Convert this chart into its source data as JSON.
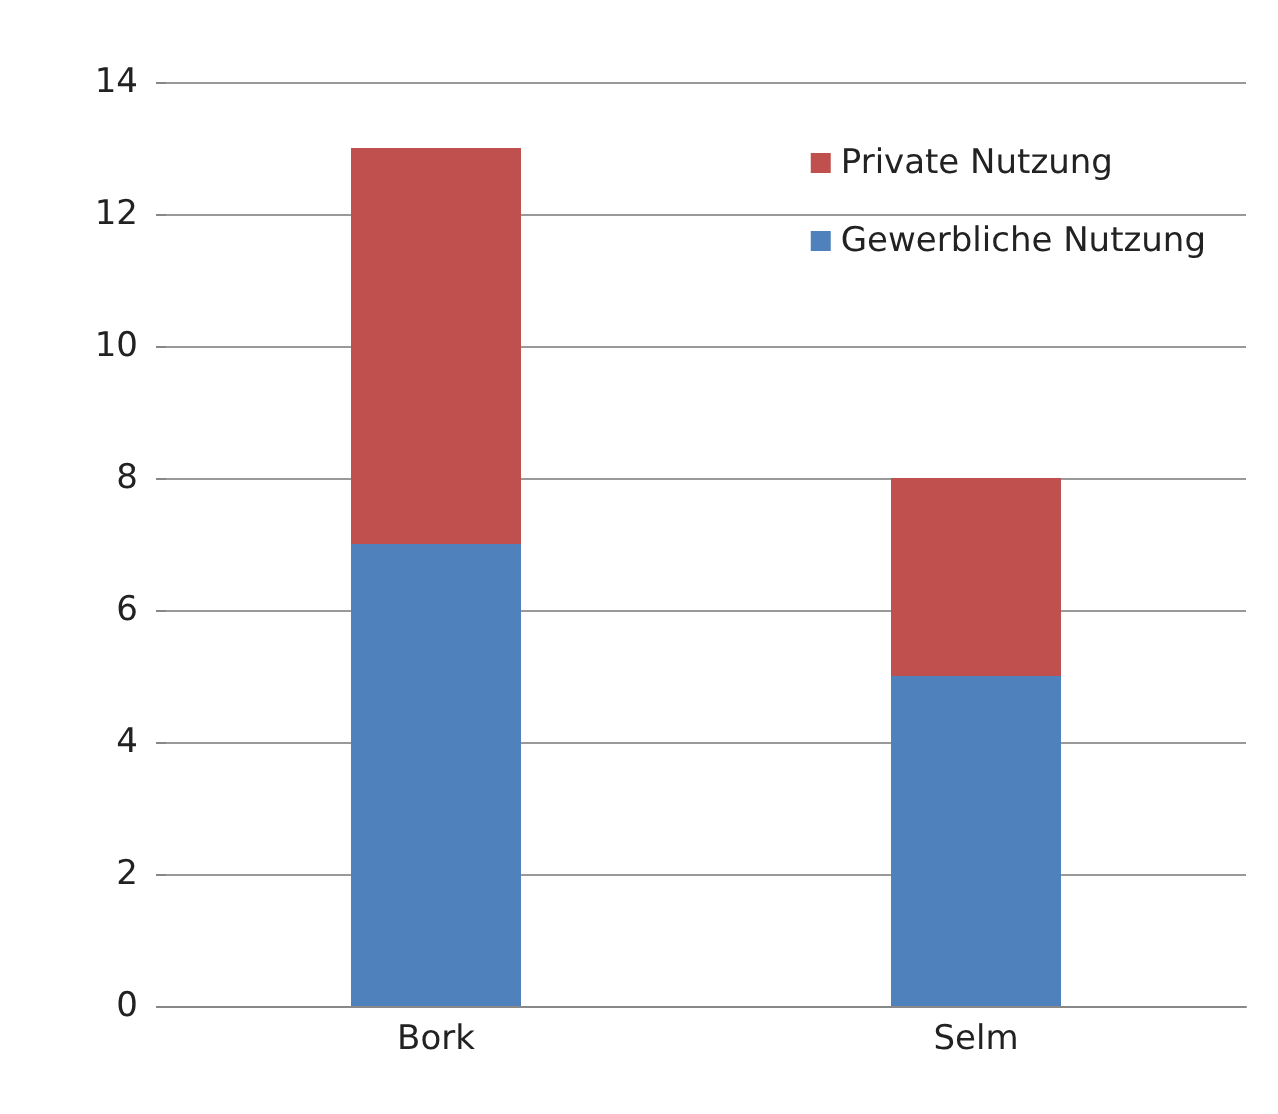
{
  "chart_data": {
    "type": "bar",
    "stacked": true,
    "categories": [
      "Bork",
      "Selm"
    ],
    "series": [
      {
        "name": "Gewerbliche Nutzung",
        "color": "#4f81bd",
        "values": [
          7,
          5
        ]
      },
      {
        "name": "Private Nutzung",
        "color": "#c0504d",
        "values": [
          6,
          3
        ]
      }
    ],
    "ylim": [
      0,
      14
    ],
    "yticks": [
      0,
      2,
      4,
      6,
      8,
      10,
      12,
      14
    ],
    "grid": "y",
    "legend": "top right"
  }
}
